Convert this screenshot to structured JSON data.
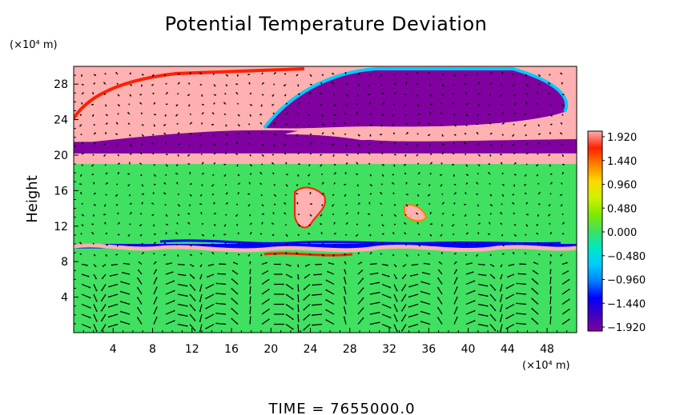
{
  "chart_data": {
    "type": "heatmap",
    "title": "Potential Temperature Deviation",
    "ylabel": "Height",
    "y_unit": "(×10⁴ m)",
    "x_unit": "(×10⁴ m)",
    "x_range": [
      0,
      51
    ],
    "y_range": [
      0,
      30
    ],
    "x_ticks": [
      4,
      8,
      12,
      16,
      20,
      24,
      28,
      32,
      36,
      40,
      44,
      48
    ],
    "y_ticks": [
      4,
      8,
      12,
      16,
      20,
      24,
      28
    ],
    "colorbar": {
      "labels": [
        "1.920",
        "1.440",
        "0.960",
        "0.480",
        "0.000",
        "−0.480",
        "−0.960",
        "−1.440",
        "−1.920"
      ],
      "min": -1.92,
      "max": 1.92,
      "colors": [
        "#8000a0",
        "#4000c0",
        "#0000ff",
        "#0080ff",
        "#00ccff",
        "#00e8c0",
        "#40e060",
        "#80e800",
        "#d0f000",
        "#ffd800",
        "#ff8000",
        "#ff2000",
        "#ffb0b0"
      ]
    },
    "bands": [
      {
        "y": [
          0,
          9.5
        ],
        "value": 0.05
      },
      {
        "y": [
          9.5,
          10.0
        ],
        "value": -1.2
      },
      {
        "y": [
          10.0,
          19.0
        ],
        "value": 0.1
      },
      {
        "y": [
          19.0,
          20.2
        ],
        "value": 1.92
      },
      {
        "y": [
          20.2,
          21.5
        ],
        "value": -1.92
      },
      {
        "y": [
          21.5,
          30.0
        ],
        "value": 1.92
      }
    ],
    "footer": "TIME  =  7655000.0"
  }
}
